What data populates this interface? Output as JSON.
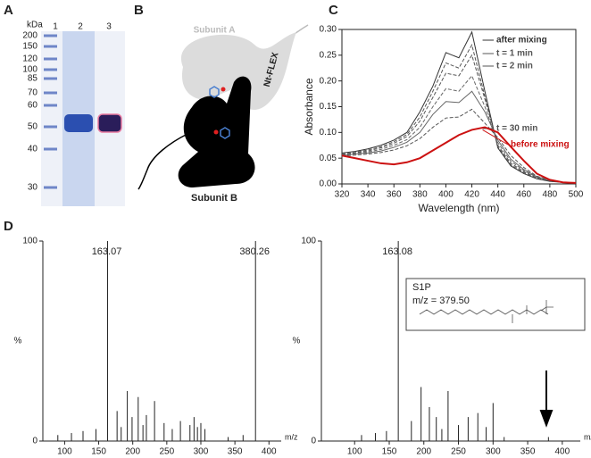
{
  "panel_labels": [
    "A",
    "B",
    "C",
    "D"
  ],
  "gel": {
    "unit": "kDa",
    "lanes": [
      "1",
      "2",
      "3"
    ],
    "markers": [
      200,
      150,
      120,
      100,
      85,
      70,
      60,
      50,
      40,
      30
    ]
  },
  "diagram": {
    "subunit_a": "Subunit A",
    "subunit_b": "Subunit B",
    "tag": "Nt-FLEX"
  },
  "chart_data": [
    {
      "type": "line",
      "xlabel": "Wavelength (nm)",
      "ylabel": "Absorbance",
      "xlim": [
        320,
        500
      ],
      "xticks": [
        320,
        340,
        360,
        380,
        400,
        420,
        440,
        460,
        480,
        500
      ],
      "ylim": [
        0,
        0.3
      ],
      "yticks": [
        {
          "value": 0,
          "label": "0.00"
        },
        0.05,
        {
          "value": 0.1,
          "label": "0.10"
        },
        0.15,
        {
          "value": 0.2,
          "label": "0.20"
        },
        0.25,
        {
          "value": 0.3,
          "label": "0.30"
        }
      ],
      "x": [
        320,
        330,
        340,
        350,
        360,
        370,
        380,
        390,
        400,
        410,
        420,
        430,
        440,
        450,
        460,
        470,
        480,
        490,
        500
      ],
      "series": [
        {
          "name": "after mixing",
          "color": "#333333",
          "dashed": false,
          "values": [
            0.06,
            0.063,
            0.068,
            0.075,
            0.085,
            0.1,
            0.14,
            0.19,
            0.255,
            0.245,
            0.295,
            0.18,
            0.07,
            0.035,
            0.02,
            0.01,
            0.005,
            0.003,
            0.002
          ]
        },
        {
          "name": "t = 1 min",
          "color": "#555555",
          "dashed": true,
          "values": [
            0.058,
            0.061,
            0.066,
            0.072,
            0.082,
            0.096,
            0.13,
            0.18,
            0.235,
            0.225,
            0.27,
            0.17,
            0.072,
            0.037,
            0.022,
            0.011,
            0.006,
            0.003,
            0.002
          ]
        },
        {
          "name": "t = 2 min",
          "color": "#555555",
          "dashed": true,
          "values": [
            0.057,
            0.06,
            0.064,
            0.07,
            0.079,
            0.092,
            0.122,
            0.168,
            0.215,
            0.21,
            0.25,
            0.165,
            0.075,
            0.04,
            0.024,
            0.012,
            0.006,
            0.003,
            0.002
          ]
        },
        {
          "color": "#666666",
          "dashed": true,
          "values": [
            0.056,
            0.059,
            0.062,
            0.067,
            0.075,
            0.086,
            0.11,
            0.15,
            0.185,
            0.18,
            0.21,
            0.15,
            0.08,
            0.044,
            0.026,
            0.013,
            0.007,
            0.003,
            0.002
          ]
        },
        {
          "color": "#666666",
          "dashed": false,
          "values": [
            0.055,
            0.058,
            0.06,
            0.064,
            0.071,
            0.081,
            0.1,
            0.135,
            0.16,
            0.158,
            0.18,
            0.14,
            0.085,
            0.048,
            0.028,
            0.014,
            0.007,
            0.003,
            0.002
          ]
        },
        {
          "name": "t = 30 min",
          "color": "#555555",
          "dashed": true,
          "values": [
            0.054,
            0.056,
            0.058,
            0.061,
            0.066,
            0.074,
            0.088,
            0.11,
            0.128,
            0.13,
            0.145,
            0.118,
            0.09,
            0.055,
            0.032,
            0.015,
            0.007,
            0.003,
            0.002
          ]
        },
        {
          "name": "before mixing",
          "color": "#cc1111",
          "dashed": false,
          "values": [
            0.055,
            0.05,
            0.045,
            0.04,
            0.038,
            0.042,
            0.05,
            0.065,
            0.08,
            0.095,
            0.105,
            0.11,
            0.1,
            0.072,
            0.045,
            0.02,
            0.008,
            0.003,
            0.002
          ]
        }
      ]
    },
    {
      "type": "spectrum",
      "xlabel": "m/z",
      "ylabel": "%",
      "xlim": [
        68,
        418
      ],
      "xticks": [
        100,
        150,
        200,
        250,
        300,
        350,
        400
      ],
      "ylim": [
        0,
        100
      ],
      "yticks": [
        0,
        100
      ],
      "x": [
        90,
        110,
        127,
        146,
        163.07,
        177,
        183,
        192,
        199,
        208,
        215,
        220,
        232,
        246,
        258,
        270,
        284,
        290,
        295,
        300,
        306,
        340,
        362,
        380.26
      ],
      "values": [
        3,
        4,
        5,
        6,
        100,
        15,
        7,
        25,
        12,
        22,
        8,
        13,
        20,
        9,
        6,
        10,
        8,
        12,
        7,
        9,
        6,
        2,
        3,
        100
      ],
      "peak_labels": [
        163.07,
        380.26
      ]
    },
    {
      "type": "spectrum",
      "xlabel": "m/z",
      "ylabel": "%",
      "xlim": [
        52,
        426
      ],
      "xticks": [
        100,
        150,
        200,
        250,
        300,
        350,
        400
      ],
      "ylim": [
        0,
        100
      ],
      "yticks": [
        0,
        100
      ],
      "x": [
        110,
        130,
        146,
        163.08,
        182,
        196,
        208,
        218,
        226,
        235,
        250,
        264,
        278,
        290,
        300,
        316,
        380
      ],
      "values": [
        3,
        4,
        5,
        100,
        10,
        27,
        17,
        12,
        6,
        25,
        8,
        12,
        14,
        7,
        19,
        2,
        2
      ],
      "peak_labels": [
        163.08
      ],
      "inset": {
        "title": "S1P",
        "text": "m/z = 379.50"
      }
    }
  ]
}
